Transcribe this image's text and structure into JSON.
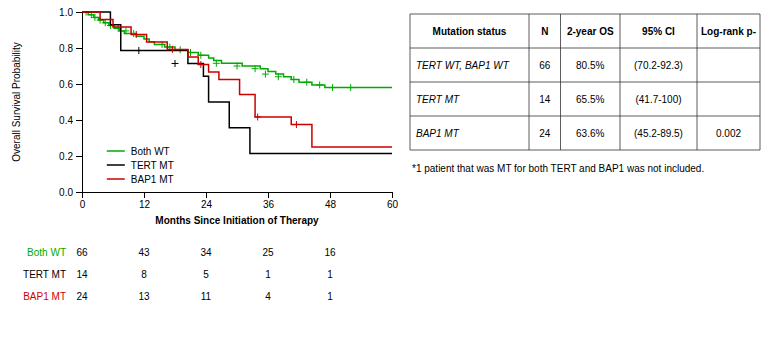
{
  "chart_data": {
    "type": "step",
    "xlabel": "Months Since Initiation of Therapy",
    "ylabel": "Overall Survival Probability",
    "xlim": [
      0,
      60
    ],
    "ylim": [
      0.0,
      1.0
    ],
    "xticks": [
      0,
      12,
      24,
      36,
      48,
      60
    ],
    "yticks": [
      {
        "value": 0.0,
        "label": "0.0"
      },
      0.2,
      0.4,
      0.6,
      0.8,
      {
        "value": 1.0,
        "label": "1.0"
      }
    ],
    "legend": "lower left",
    "grid": false,
    "marker": "+",
    "at_risk_x": [
      0,
      12,
      24,
      36,
      48
    ],
    "series": [
      {
        "name": "Both WT",
        "color": "#00AA00",
        "x": [
          0,
          0.5,
          1.0,
          1.2,
          1.5,
          2.0,
          2.3,
          2.8,
          3.2,
          3.8,
          4.2,
          4.8,
          5.2,
          5.8,
          6.2,
          6.8,
          7.2,
          7.8,
          8.2,
          8.8,
          9.2,
          9.8,
          10.5,
          11.5,
          12.0,
          13.0,
          14.0,
          15.2,
          16.0,
          17.2,
          18.0,
          19.5,
          20.5,
          21.5,
          22.5,
          23.5,
          24.5,
          25.5,
          27.0,
          29.0,
          31.0,
          32.5,
          34.5,
          36.0,
          37.5,
          39.0,
          40.5,
          42.0,
          44.5,
          47.0,
          49.0,
          51.0,
          53.0,
          55.0,
          57.0,
          60.0
        ],
        "values": [
          1.0,
          1.0,
          1.0,
          0.985,
          0.985,
          0.985,
          0.97,
          0.97,
          0.955,
          0.955,
          0.94,
          0.94,
          0.925,
          0.925,
          0.91,
          0.91,
          0.895,
          0.895,
          0.88,
          0.88,
          0.88,
          0.88,
          0.865,
          0.865,
          0.85,
          0.835,
          0.82,
          0.82,
          0.805,
          0.805,
          0.79,
          0.79,
          0.775,
          0.775,
          0.76,
          0.76,
          0.745,
          0.73,
          0.715,
          0.715,
          0.7,
          0.7,
          0.685,
          0.67,
          0.655,
          0.64,
          0.625,
          0.61,
          0.595,
          0.58,
          0.58,
          0.58,
          0.58,
          0.58,
          0.58,
          0.58
        ],
        "censors": [
          0.8,
          1.8,
          2.5,
          3.5,
          4.5,
          5.5,
          7.0,
          8.5,
          10.0,
          15.5,
          17.0,
          19.0,
          21.0,
          23.0,
          26.0,
          30.0,
          33.5,
          35.5,
          38.0,
          41.0,
          43.5,
          46.0,
          48.5,
          52.0
        ],
        "censor_values": [
          1.0,
          0.985,
          0.97,
          0.955,
          0.94,
          0.925,
          0.91,
          0.895,
          0.88,
          0.82,
          0.805,
          0.79,
          0.775,
          0.76,
          0.715,
          0.7,
          0.685,
          0.655,
          0.64,
          0.625,
          0.61,
          0.595,
          0.58,
          0.58
        ],
        "at_risk": [
          66,
          43,
          34,
          25,
          16
        ]
      },
      {
        "name": "TERT MT",
        "color": "#000000",
        "x": [
          0,
          5.5,
          7.5,
          14.5,
          20.5,
          23.5,
          24.5,
          28.5,
          32.5,
          60.0
        ],
        "values": [
          1.0,
          0.929,
          0.786,
          0.786,
          0.714,
          0.643,
          0.5,
          0.357,
          0.214,
          0.214
        ],
        "censors": [
          11.0,
          18.0
        ],
        "censor_values": [
          0.786,
          0.714
        ],
        "at_risk": [
          14,
          8,
          5,
          1,
          1
        ]
      },
      {
        "name": "BAP1 MT",
        "color": "#CC0000",
        "x": [
          0,
          3.5,
          6.0,
          9.5,
          12.5,
          16.5,
          20.5,
          22.5,
          24.5,
          26.5,
          30.5,
          33.5,
          36.5,
          40.5,
          44.5,
          60.0
        ],
        "values": [
          1.0,
          0.958,
          0.917,
          0.875,
          0.833,
          0.792,
          0.75,
          0.708,
          0.667,
          0.625,
          0.542,
          0.417,
          0.417,
          0.375,
          0.25,
          0.25
        ],
        "censors": [
          10.5,
          17.5,
          23.0,
          34.0,
          41.5
        ],
        "censor_values": [
          0.875,
          0.792,
          0.708,
          0.417,
          0.375
        ],
        "at_risk": [
          24,
          13,
          11,
          4,
          1
        ]
      }
    ],
    "table": {
      "header": [
        "Mutation status",
        "N",
        "2-year OS",
        "95% CI",
        "Log-rank p-"
      ],
      "rows": [
        [
          "TERT WT, BAP1 WT",
          "66",
          "80.5%",
          "(70.2-92.3)",
          null
        ],
        [
          "TERT MT",
          "14",
          "65.5%",
          "(41.7-100)",
          null
        ],
        [
          "BAP1 MT",
          "24",
          "63.6%",
          "(45.2-89.5)",
          "0.002"
        ]
      ]
    },
    "footnote": "*1 patient that was MT for both TERT and BAP1 was not included."
  }
}
